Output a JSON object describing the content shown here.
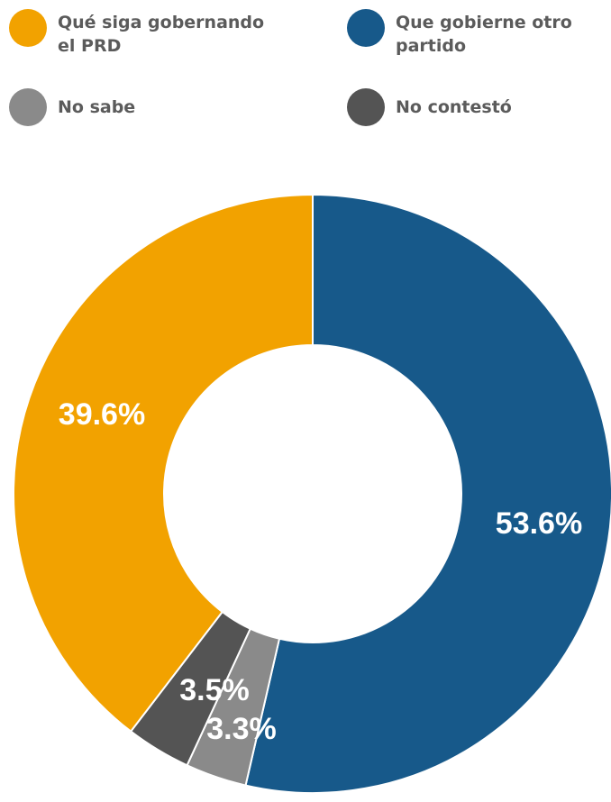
{
  "chart_data": {
    "type": "pie",
    "title": "",
    "categories": [
      "Qué siga gobernando\n el PRD",
      "Que gobierne otro\npartido",
      "No sabe",
      "No contestó"
    ],
    "values": [
      39.6,
      53.6,
      3.3,
      3.5
    ],
    "labels": [
      "39.6%",
      "53.6%",
      "3.3%",
      "3.5%"
    ],
    "colors": [
      "#f2a200",
      "#17598a",
      "#8a8a8a",
      "#545454"
    ],
    "legend_position": "top",
    "style": "donut"
  }
}
